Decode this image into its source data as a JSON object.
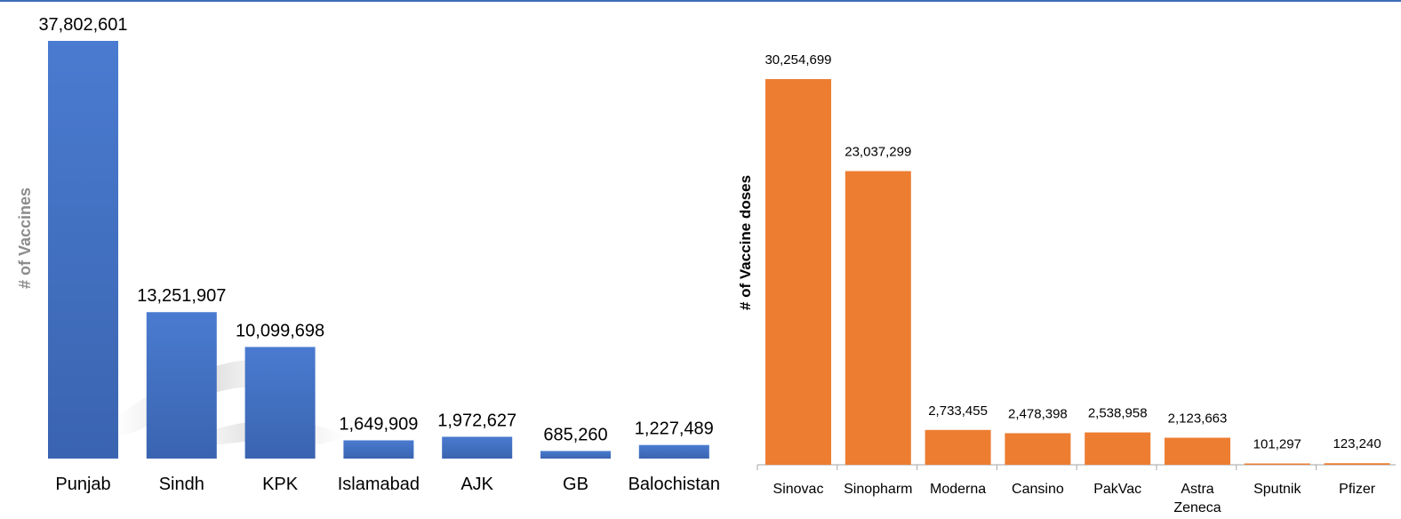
{
  "chart_data": [
    {
      "type": "bar",
      "title": "",
      "xlabel": "",
      "ylabel": "# of Vaccines",
      "categories": [
        "Punjab",
        "Sindh",
        "KPK",
        "Islamabad",
        "AJK",
        "GB",
        "Balochistan"
      ],
      "values": [
        37802601,
        13251907,
        10099698,
        1649909,
        1972627,
        685260,
        1227489
      ],
      "value_labels": [
        "37,802,601",
        "13,251,907",
        "10,099,698",
        "1,649,909",
        "1,972,627",
        "685,260",
        "1,227,489"
      ],
      "color": "#4472c4",
      "ylim": [
        0,
        37802601
      ],
      "grid": false,
      "legend": "none"
    },
    {
      "type": "bar",
      "title": "",
      "xlabel": "",
      "ylabel": "# of Vaccine doses",
      "categories": [
        "Sinovac",
        "Sinopharm",
        "Moderna",
        "Cansino",
        "PakVac",
        "Astra Zeneca",
        "Sputnik",
        "Pfizer"
      ],
      "category_lines": [
        [
          "Sinovac"
        ],
        [
          "Sinopharm"
        ],
        [
          "Moderna"
        ],
        [
          "Cansino"
        ],
        [
          "PakVac"
        ],
        [
          "Astra",
          "Zeneca"
        ],
        [
          "Sputnik"
        ],
        [
          "Pfizer"
        ]
      ],
      "values": [
        30254699,
        23037299,
        2733455,
        2478398,
        2538958,
        2123663,
        101297,
        123240
      ],
      "value_labels": [
        "30,254,699",
        "23,037,299",
        "2,733,455",
        "2,478,398",
        "2,538,958",
        "2,123,663",
        "101,297",
        "123,240"
      ],
      "color": "#ed7d31",
      "ylim": [
        0,
        30254699
      ],
      "grid": false,
      "legend": "none"
    }
  ]
}
